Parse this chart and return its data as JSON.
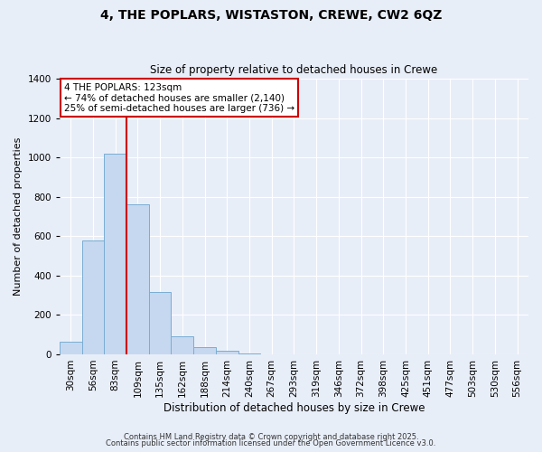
{
  "title": "4, THE POPLARS, WISTASTON, CREWE, CW2 6QZ",
  "subtitle": "Size of property relative to detached houses in Crewe",
  "xlabel": "Distribution of detached houses by size in Crewe",
  "ylabel": "Number of detached properties",
  "bar_values": [
    65,
    580,
    1020,
    760,
    315,
    90,
    38,
    18,
    5,
    2,
    0,
    0,
    0,
    0,
    0,
    0,
    0,
    0,
    0,
    0,
    0
  ],
  "bar_labels": [
    "30sqm",
    "56sqm",
    "83sqm",
    "109sqm",
    "135sqm",
    "162sqm",
    "188sqm",
    "214sqm",
    "240sqm",
    "267sqm",
    "293sqm",
    "319sqm",
    "346sqm",
    "372sqm",
    "398sqm",
    "425sqm",
    "451sqm",
    "477sqm",
    "503sqm",
    "530sqm",
    "556sqm"
  ],
  "bar_color": "#c5d8f0",
  "bar_edge_color": "#7aadd4",
  "vline_x": 3.0,
  "vline_color": "#cc0000",
  "ylim": [
    0,
    1400
  ],
  "annotation_title": "4 THE POPLARS: 123sqm",
  "annotation_line1": "← 74% of detached houses are smaller (2,140)",
  "annotation_line2": "25% of semi-detached houses are larger (736) →",
  "annotation_box_facecolor": "#ffffff",
  "annotation_box_edgecolor": "#cc0000",
  "footnote1": "Contains HM Land Registry data © Crown copyright and database right 2025.",
  "footnote2": "Contains public sector information licensed under the Open Government Licence v3.0.",
  "background_color": "#e8eef8",
  "grid_color": "#ffffff",
  "title_fontsize": 10,
  "subtitle_fontsize": 8.5,
  "ylabel_fontsize": 8,
  "xlabel_fontsize": 8.5,
  "tick_fontsize": 7.5,
  "annotation_fontsize": 7.5,
  "footnote_fontsize": 6
}
